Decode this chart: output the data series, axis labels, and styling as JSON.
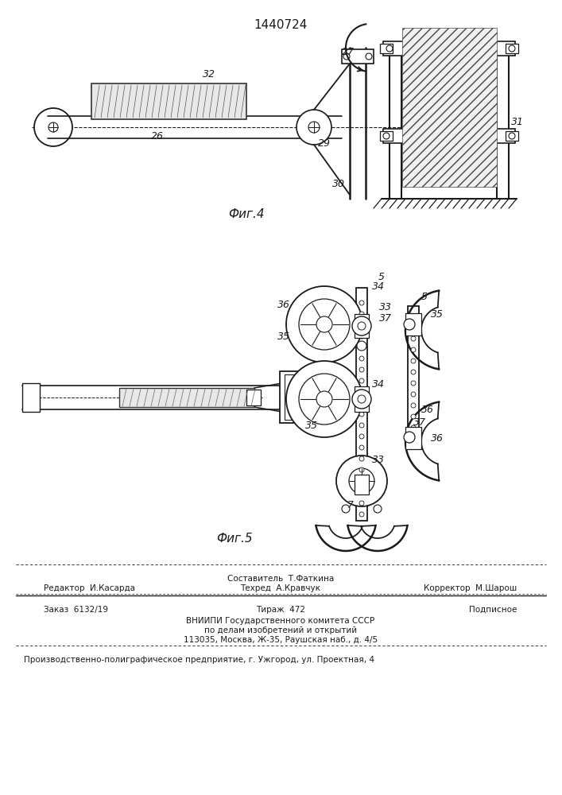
{
  "patent_number": "1440724",
  "fig4_label": "Фиг.4",
  "fig5_label": "Фиг.5",
  "bg_color": "#ffffff",
  "line_color": "#1a1a1a",
  "footer": {
    "editor": "Редактор  И.Касарда",
    "composer_line1": "Составитель  Т.Фаткина",
    "composer_line2": "Техред  А.Кравчук",
    "corrector": "Корректор  М.Шарош",
    "order": "Заказ  6132/19",
    "circulation": "Тираж  472",
    "subscription": "Подписное",
    "vniipи_line1": "ВНИИПИ Государственного комитета СССР",
    "vniipи_line2": "по делам изобретений и открытий",
    "vniipи_line3": "113035, Москва, Ж-35, Раушская наб., д. 4/5",
    "production": "Производственно-полиграфическое предприятие, г. Ужгород, ул. Проектная, 4"
  }
}
